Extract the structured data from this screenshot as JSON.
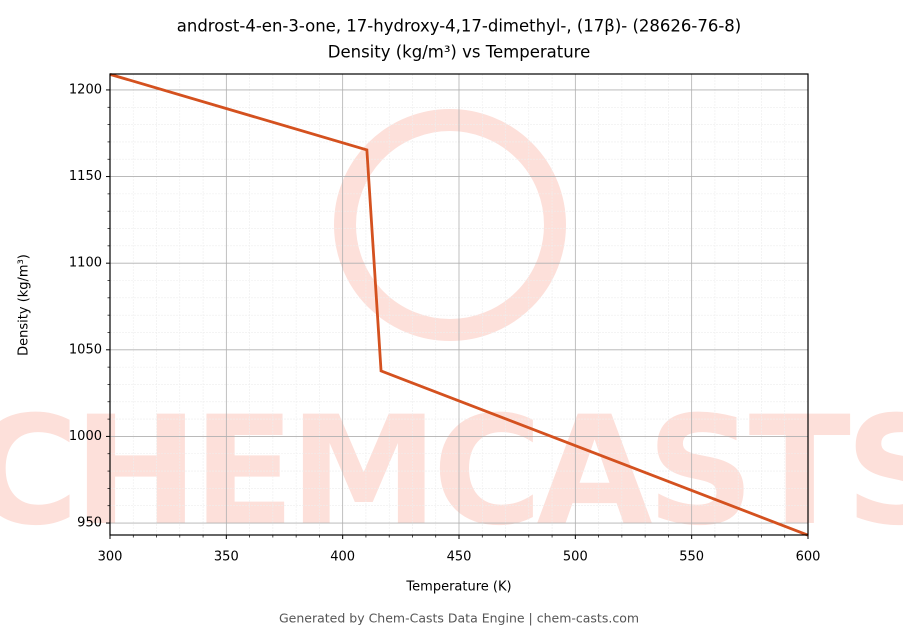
{
  "chart_data": {
    "type": "line",
    "title": "androst-4-en-3-one, 17-hydroxy-4,17-dimethyl-, (17β)- (28626-76-8)",
    "subtitle": "Density (kg/m³) vs Temperature",
    "xlabel": "Temperature (K)",
    "ylabel": "Density (kg/m³)",
    "footer": "Generated by Chem-Casts Data Engine | chem-casts.com",
    "watermark": "CHEMCASTS",
    "x": [
      300,
      410.4,
      416.5,
      600
    ],
    "series": [
      {
        "name": "Density",
        "color": "#d4511f",
        "values": [
          1209,
          1165.4,
          1037.8,
          943
        ]
      }
    ],
    "xlim": [
      300,
      600
    ],
    "ylim": [
      943.1,
      1209.2
    ],
    "xticks": [
      300,
      350,
      400,
      450,
      500,
      550,
      600
    ],
    "yticks": [
      950,
      1000,
      1050,
      1100,
      1150,
      1200
    ],
    "xminorticks": [
      310,
      320,
      330,
      340,
      360,
      370,
      380,
      390,
      410,
      420,
      430,
      440,
      460,
      470,
      480,
      490,
      510,
      520,
      530,
      540,
      560,
      570,
      580,
      590
    ],
    "yminorticks": [
      960,
      970,
      980,
      990,
      1010,
      1020,
      1030,
      1040,
      1060,
      1070,
      1080,
      1090,
      1110,
      1120,
      1130,
      1140,
      1160,
      1170,
      1180,
      1190
    ],
    "grid": true
  }
}
